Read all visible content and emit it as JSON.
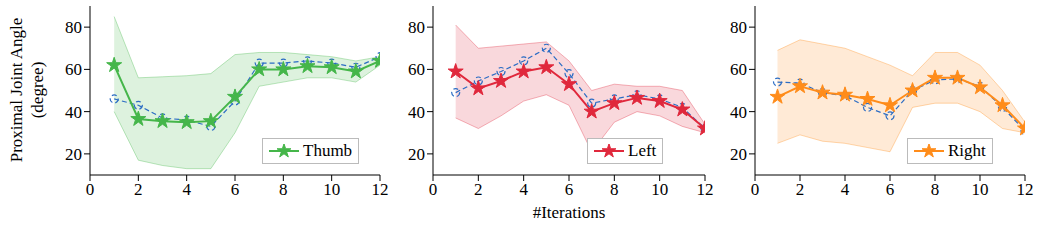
{
  "chart_data": [
    {
      "type": "line",
      "ylabel": "Proximal Joint Angle (degree)",
      "x": [
        1,
        2,
        3,
        4,
        5,
        6,
        7,
        8,
        9,
        10,
        11,
        12
      ],
      "xlim": [
        0,
        12
      ],
      "xticks": [
        0,
        2,
        4,
        6,
        8,
        10,
        12
      ],
      "ylim": [
        10,
        90
      ],
      "yticks": [
        20,
        40,
        60,
        80
      ],
      "legend": "lower right",
      "series": [
        {
          "name": "Thumb",
          "color": "#45b64a",
          "marker": "star",
          "line_style": "solid",
          "values": [
            62,
            36.5,
            35.5,
            35,
            35.5,
            47,
            60,
            60,
            61.5,
            61,
            59,
            64
          ],
          "band_lower": [
            40,
            17,
            14.5,
            13,
            13,
            30,
            52,
            54,
            56,
            56,
            54,
            62
          ],
          "band_upper": [
            85,
            56,
            56.5,
            57,
            58,
            67,
            68,
            68,
            67,
            66,
            64,
            66
          ]
        },
        {
          "color": "#2b6cc4",
          "marker": "circle",
          "line_style": "dashed",
          "values": [
            46,
            43,
            37,
            36,
            33,
            45,
            63,
            63,
            64,
            63,
            61,
            66
          ]
        }
      ]
    },
    {
      "type": "line",
      "xlabel": "#Iterations",
      "x": [
        1,
        2,
        3,
        4,
        5,
        6,
        7,
        8,
        9,
        10,
        11,
        12
      ],
      "xlim": [
        0,
        12
      ],
      "xticks": [
        0,
        2,
        4,
        6,
        8,
        10,
        12
      ],
      "ylim": [
        10,
        90
      ],
      "yticks": [
        20,
        40,
        60,
        80
      ],
      "legend": "lower right",
      "series": [
        {
          "name": "Left",
          "color": "#e0283c",
          "marker": "star",
          "line_style": "solid",
          "values": [
            59,
            51,
            54.5,
            59,
            61,
            53,
            40,
            44,
            46.5,
            45,
            41,
            32
          ],
          "band_lower": [
            37,
            32,
            38,
            45,
            48,
            43,
            21,
            35,
            40,
            38,
            33,
            30
          ],
          "band_upper": [
            81,
            70,
            71,
            72,
            73,
            64,
            50,
            53,
            52,
            52,
            50,
            34
          ]
        },
        {
          "color": "#2b6cc4",
          "marker": "circle",
          "line_style": "dashed",
          "values": [
            49,
            54.5,
            59,
            64,
            70,
            58,
            44,
            46,
            48,
            46,
            42,
            32
          ]
        }
      ]
    },
    {
      "type": "line",
      "x": [
        1,
        2,
        3,
        4,
        5,
        6,
        7,
        8,
        9,
        10,
        11,
        12
      ],
      "xlim": [
        0,
        12
      ],
      "xticks": [
        0,
        2,
        4,
        6,
        8,
        10,
        12
      ],
      "ylim": [
        10,
        90
      ],
      "yticks": [
        20,
        40,
        60,
        80
      ],
      "legend": "lower right",
      "series": [
        {
          "name": "Right",
          "color": "#ff8c1a",
          "marker": "star",
          "line_style": "solid",
          "values": [
            47,
            52,
            49,
            48,
            46,
            43,
            50,
            56,
            56,
            51.5,
            43,
            32
          ],
          "band_lower": [
            25,
            29,
            26,
            25,
            23,
            21,
            42,
            44,
            44,
            40,
            32,
            30
          ],
          "band_upper": [
            69,
            74,
            72,
            70,
            66,
            62,
            57,
            68,
            68,
            62,
            50,
            35
          ]
        },
        {
          "color": "#2b6cc4",
          "marker": "circle",
          "line_style": "dashed",
          "values": [
            54,
            53.5,
            49,
            47.5,
            42,
            38,
            50,
            55,
            55.5,
            52,
            42,
            31
          ]
        }
      ]
    }
  ]
}
